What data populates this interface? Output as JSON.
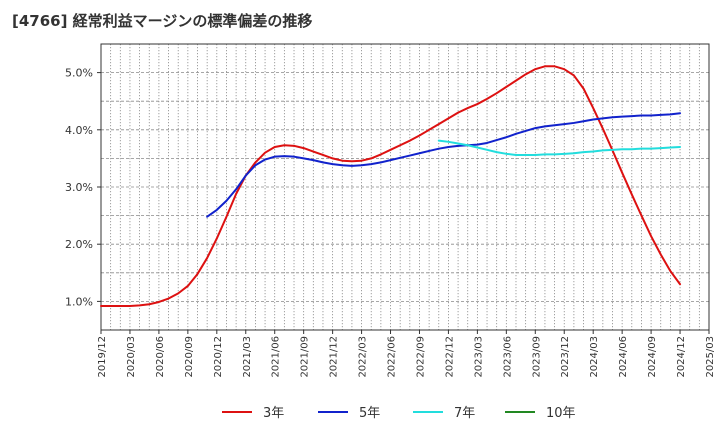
{
  "chart_data": {
    "type": "line",
    "title": "[4766]  経常利益マージンの標準偏差の推移",
    "xlabel": "",
    "ylabel": "",
    "x_ticks": [
      "2019/12",
      "2020/03",
      "2020/06",
      "2020/09",
      "2020/12",
      "2021/03",
      "2021/06",
      "2021/09",
      "2021/12",
      "2022/03",
      "2022/06",
      "2022/09",
      "2022/12",
      "2023/03",
      "2023/06",
      "2023/09",
      "2023/12",
      "2024/03",
      "2024/06",
      "2024/09",
      "2024/12",
      "2025/03"
    ],
    "y_ticks": [
      "1.0%",
      "2.0%",
      "3.0%",
      "4.0%",
      "5.0%"
    ],
    "ylim": [
      0.5,
      5.5
    ],
    "grid": true,
    "legend_position": "bottom",
    "series": [
      {
        "name": "3年",
        "color": "#dd1111",
        "points": [
          [
            "2019/12",
            0.92
          ],
          [
            "2020/01",
            0.92
          ],
          [
            "2020/02",
            0.92
          ],
          [
            "2020/03",
            0.92
          ],
          [
            "2020/04",
            0.93
          ],
          [
            "2020/05",
            0.95
          ],
          [
            "2020/06",
            0.99
          ],
          [
            "2020/07",
            1.05
          ],
          [
            "2020/08",
            1.14
          ],
          [
            "2020/09",
            1.27
          ],
          [
            "2020/10",
            1.48
          ],
          [
            "2020/11",
            1.76
          ],
          [
            "2020/12",
            2.1
          ],
          [
            "2021/01",
            2.48
          ],
          [
            "2021/02",
            2.88
          ],
          [
            "2021/03",
            3.2
          ],
          [
            "2021/04",
            3.43
          ],
          [
            "2021/05",
            3.6
          ],
          [
            "2021/06",
            3.7
          ],
          [
            "2021/07",
            3.73
          ],
          [
            "2021/08",
            3.72
          ],
          [
            "2021/09",
            3.68
          ],
          [
            "2021/10",
            3.62
          ],
          [
            "2021/11",
            3.56
          ],
          [
            "2021/12",
            3.5
          ],
          [
            "2022/01",
            3.46
          ],
          [
            "2022/02",
            3.45
          ],
          [
            "2022/03",
            3.46
          ],
          [
            "2022/04",
            3.5
          ],
          [
            "2022/05",
            3.57
          ],
          [
            "2022/06",
            3.65
          ],
          [
            "2022/07",
            3.73
          ],
          [
            "2022/08",
            3.81
          ],
          [
            "2022/09",
            3.9
          ],
          [
            "2022/10",
            4.0
          ],
          [
            "2022/11",
            4.1
          ],
          [
            "2022/12",
            4.2
          ],
          [
            "2023/01",
            4.3
          ],
          [
            "2023/02",
            4.38
          ],
          [
            "2023/03",
            4.45
          ],
          [
            "2023/04",
            4.54
          ],
          [
            "2023/05",
            4.64
          ],
          [
            "2023/06",
            4.75
          ],
          [
            "2023/07",
            4.86
          ],
          [
            "2023/08",
            4.97
          ],
          [
            "2023/09",
            5.06
          ],
          [
            "2023/10",
            5.11
          ],
          [
            "2023/11",
            5.11
          ],
          [
            "2023/12",
            5.06
          ],
          [
            "2024/01",
            4.95
          ],
          [
            "2024/02",
            4.72
          ],
          [
            "2024/03",
            4.38
          ],
          [
            "2024/04",
            4.02
          ],
          [
            "2024/05",
            3.64
          ],
          [
            "2024/06",
            3.25
          ],
          [
            "2024/07",
            2.87
          ],
          [
            "2024/08",
            2.5
          ],
          [
            "2024/09",
            2.14
          ],
          [
            "2024/10",
            1.82
          ],
          [
            "2024/11",
            1.53
          ],
          [
            "2024/12",
            1.3
          ]
        ]
      },
      {
        "name": "5年",
        "color": "#1122cc",
        "points": [
          [
            "2020/11",
            2.48
          ],
          [
            "2020/12",
            2.6
          ],
          [
            "2021/01",
            2.76
          ],
          [
            "2021/02",
            2.96
          ],
          [
            "2021/03",
            3.2
          ],
          [
            "2021/04",
            3.38
          ],
          [
            "2021/05",
            3.48
          ],
          [
            "2021/06",
            3.53
          ],
          [
            "2021/07",
            3.54
          ],
          [
            "2021/08",
            3.53
          ],
          [
            "2021/09",
            3.5
          ],
          [
            "2021/10",
            3.47
          ],
          [
            "2021/11",
            3.43
          ],
          [
            "2021/12",
            3.4
          ],
          [
            "2022/01",
            3.38
          ],
          [
            "2022/02",
            3.37
          ],
          [
            "2022/03",
            3.38
          ],
          [
            "2022/04",
            3.4
          ],
          [
            "2022/05",
            3.43
          ],
          [
            "2022/06",
            3.47
          ],
          [
            "2022/07",
            3.51
          ],
          [
            "2022/08",
            3.55
          ],
          [
            "2022/09",
            3.59
          ],
          [
            "2022/10",
            3.63
          ],
          [
            "2022/11",
            3.67
          ],
          [
            "2022/12",
            3.7
          ],
          [
            "2023/01",
            3.72
          ],
          [
            "2023/02",
            3.73
          ],
          [
            "2023/03",
            3.74
          ],
          [
            "2023/04",
            3.77
          ],
          [
            "2023/05",
            3.82
          ],
          [
            "2023/06",
            3.87
          ],
          [
            "2023/07",
            3.93
          ],
          [
            "2023/08",
            3.98
          ],
          [
            "2023/09",
            4.03
          ],
          [
            "2023/10",
            4.06
          ],
          [
            "2023/11",
            4.08
          ],
          [
            "2023/12",
            4.1
          ],
          [
            "2024/01",
            4.12
          ],
          [
            "2024/02",
            4.15
          ],
          [
            "2024/03",
            4.18
          ],
          [
            "2024/04",
            4.2
          ],
          [
            "2024/05",
            4.22
          ],
          [
            "2024/06",
            4.23
          ],
          [
            "2024/07",
            4.24
          ],
          [
            "2024/08",
            4.25
          ],
          [
            "2024/09",
            4.25
          ],
          [
            "2024/10",
            4.26
          ],
          [
            "2024/11",
            4.27
          ],
          [
            "2024/12",
            4.29
          ]
        ]
      },
      {
        "name": "7年",
        "color": "#22dddd",
        "points": [
          [
            "2022/11",
            3.81
          ],
          [
            "2022/12",
            3.79
          ],
          [
            "2023/01",
            3.76
          ],
          [
            "2023/02",
            3.73
          ],
          [
            "2023/03",
            3.69
          ],
          [
            "2023/04",
            3.65
          ],
          [
            "2023/05",
            3.61
          ],
          [
            "2023/06",
            3.58
          ],
          [
            "2023/07",
            3.56
          ],
          [
            "2023/08",
            3.56
          ],
          [
            "2023/09",
            3.56
          ],
          [
            "2023/10",
            3.57
          ],
          [
            "2023/11",
            3.57
          ],
          [
            "2023/12",
            3.58
          ],
          [
            "2024/01",
            3.59
          ],
          [
            "2024/02",
            3.61
          ],
          [
            "2024/03",
            3.62
          ],
          [
            "2024/04",
            3.64
          ],
          [
            "2024/05",
            3.65
          ],
          [
            "2024/06",
            3.66
          ],
          [
            "2024/07",
            3.66
          ],
          [
            "2024/08",
            3.67
          ],
          [
            "2024/09",
            3.67
          ],
          [
            "2024/10",
            3.68
          ],
          [
            "2024/11",
            3.69
          ],
          [
            "2024/12",
            3.7
          ]
        ]
      },
      {
        "name": "10年",
        "color": "#228822",
        "points": []
      }
    ]
  }
}
